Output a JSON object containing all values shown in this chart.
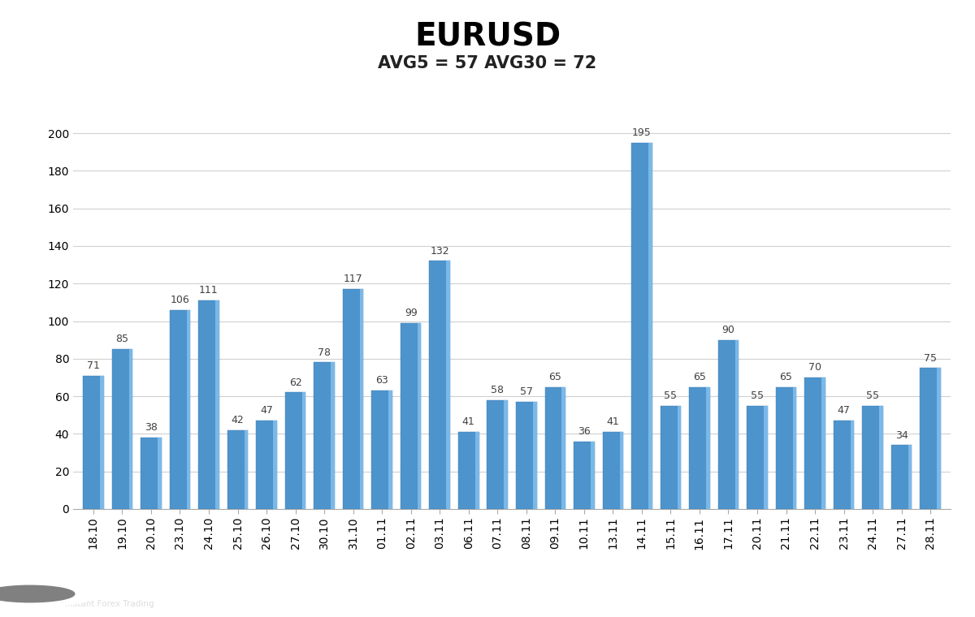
{
  "title": "EURUSD",
  "subtitle": "AVG5 = 57 AVG30 = 72",
  "categories": [
    "18.10",
    "19.10",
    "20.10",
    "23.10",
    "24.10",
    "25.10",
    "26.10",
    "27.10",
    "30.10",
    "31.10",
    "01.11",
    "02.11",
    "03.11",
    "06.11",
    "07.11",
    "08.11",
    "09.11",
    "10.11",
    "13.11",
    "14.11",
    "15.11",
    "16.11",
    "17.11",
    "20.11",
    "21.11",
    "22.11",
    "23.11",
    "24.11",
    "27.11",
    "28.11"
  ],
  "values": [
    71,
    85,
    38,
    106,
    111,
    42,
    47,
    62,
    78,
    117,
    63,
    99,
    132,
    41,
    58,
    57,
    65,
    36,
    41,
    195,
    55,
    65,
    90,
    55,
    65,
    70,
    47,
    55,
    34,
    75
  ],
  "bar_color": "#4d94cc",
  "bar_color_light": "#7ab8e8",
  "bar_edge_color": "#3a7ab5",
  "ylim": [
    0,
    220
  ],
  "yticks": [
    0,
    20,
    40,
    60,
    80,
    100,
    120,
    140,
    160,
    180,
    200
  ],
  "title_fontsize": 28,
  "subtitle_fontsize": 15,
  "label_fontsize": 9,
  "tick_fontsize": 10,
  "value_label_color": "#404040",
  "background_color": "#ffffff",
  "grid_color": "#d0d0d0",
  "title_fontweight": "bold",
  "subtitle_fontweight": "bold",
  "bar_width": 0.72,
  "logo_bg_color": "#808080",
  "logo_text_color": "#ffffff"
}
